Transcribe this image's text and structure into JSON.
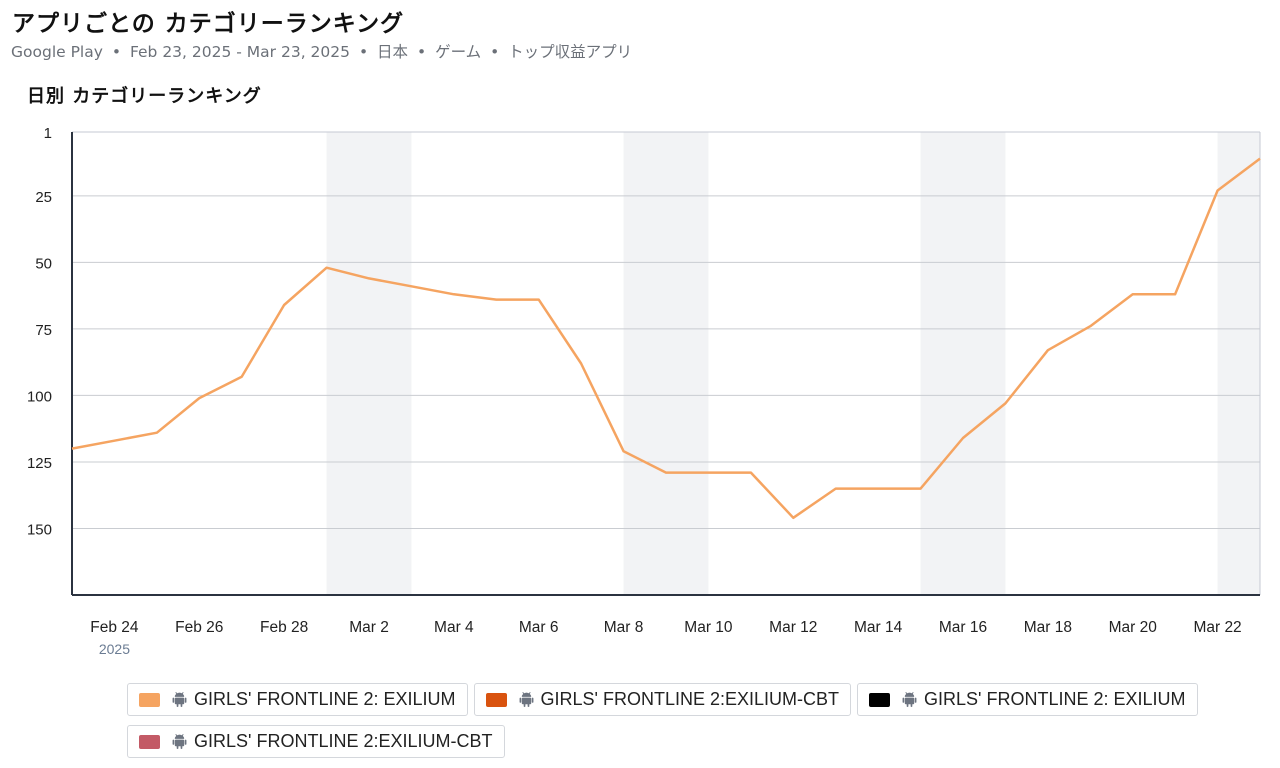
{
  "header": {
    "title": "アプリごとの カテゴリーランキング",
    "subtitle": {
      "store": "Google Play",
      "date_range": "Feb 23, 2025 - Mar 23, 2025",
      "country": "日本",
      "category": "ゲーム",
      "chart_kind": "トップ収益アプリ",
      "separator": "•"
    }
  },
  "chart_data": {
    "type": "line",
    "title": "日別 カテゴリーランキング",
    "xlabel": "",
    "ylabel": "",
    "y_inverted": true,
    "ylim": [
      1,
      175
    ],
    "y_ticks": [
      1,
      25,
      50,
      75,
      100,
      125,
      150
    ],
    "x_range": [
      "2025-02-23",
      "2025-03-23"
    ],
    "x_ticks": [
      {
        "date": "2025-02-24",
        "label": "Feb 24",
        "sublabel": "2025"
      },
      {
        "date": "2025-02-26",
        "label": "Feb 26"
      },
      {
        "date": "2025-02-28",
        "label": "Feb 28"
      },
      {
        "date": "2025-03-02",
        "label": "Mar 2"
      },
      {
        "date": "2025-03-04",
        "label": "Mar 4"
      },
      {
        "date": "2025-03-06",
        "label": "Mar 6"
      },
      {
        "date": "2025-03-08",
        "label": "Mar 8"
      },
      {
        "date": "2025-03-10",
        "label": "Mar 10"
      },
      {
        "date": "2025-03-12",
        "label": "Mar 12"
      },
      {
        "date": "2025-03-14",
        "label": "Mar 14"
      },
      {
        "date": "2025-03-16",
        "label": "Mar 16"
      },
      {
        "date": "2025-03-18",
        "label": "Mar 18"
      },
      {
        "date": "2025-03-20",
        "label": "Mar 20"
      },
      {
        "date": "2025-03-22",
        "label": "Mar 22"
      }
    ],
    "weekend_bands": [
      [
        "2025-03-01",
        "2025-03-02"
      ],
      [
        "2025-03-08",
        "2025-03-09"
      ],
      [
        "2025-03-15",
        "2025-03-16"
      ],
      [
        "2025-03-22",
        "2025-03-23"
      ]
    ],
    "grid": true,
    "legend_position": "bottom",
    "series": [
      {
        "name": "GIRLS' FRONTLINE 2: EXILIUM",
        "color": "#f5a461",
        "icon": "android-icon",
        "x": [
          "2025-02-23",
          "2025-02-24",
          "2025-02-25",
          "2025-02-26",
          "2025-02-27",
          "2025-02-28",
          "2025-03-01",
          "2025-03-02",
          "2025-03-03",
          "2025-03-04",
          "2025-03-05",
          "2025-03-06",
          "2025-03-07",
          "2025-03-08",
          "2025-03-09",
          "2025-03-10",
          "2025-03-11",
          "2025-03-12",
          "2025-03-13",
          "2025-03-14",
          "2025-03-15",
          "2025-03-16",
          "2025-03-17",
          "2025-03-18",
          "2025-03-19",
          "2025-03-20",
          "2025-03-21",
          "2025-03-22",
          "2025-03-23"
        ],
        "values": [
          120,
          117,
          114,
          101,
          93,
          66,
          52,
          56,
          59,
          62,
          64,
          64,
          88,
          121,
          129,
          129,
          129,
          146,
          135,
          135,
          135,
          116,
          103,
          83,
          74,
          62,
          62,
          23,
          11
        ]
      },
      {
        "name": "GIRLS' FRONTLINE 2:EXILIUM-CBT",
        "color": "#d9530f",
        "icon": "android-icon",
        "values": []
      },
      {
        "name": "GIRLS' FRONTLINE 2: EXILIUM",
        "color": "#000000",
        "icon": "android-icon",
        "values": []
      },
      {
        "name": "GIRLS' FRONTLINE 2:EXILIUM-CBT",
        "color": "#c35a66",
        "icon": "android-icon",
        "values": []
      }
    ]
  }
}
